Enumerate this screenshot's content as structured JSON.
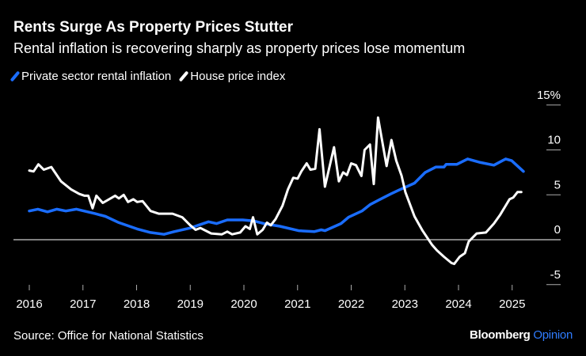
{
  "chart_data": {
    "type": "line",
    "title": "Rents Surge As Property Prices Stutter",
    "subtitle": "Rental inflation is recovering sharply as property prices lose momentum",
    "xlabel": "",
    "ylabel": "",
    "xlim": [
      2016,
      2025.3
    ],
    "ylim": [
      -5,
      15
    ],
    "x_ticks": [
      "2016",
      "2017",
      "2018",
      "2019",
      "2020",
      "2021",
      "2022",
      "2023",
      "2024",
      "2025"
    ],
    "y_ticks": [
      {
        "value": 15,
        "label": "15%"
      },
      {
        "value": 10,
        "label": "10"
      },
      {
        "value": 5,
        "label": "5"
      },
      {
        "value": 0,
        "label": "0"
      },
      {
        "value": -5,
        "label": "-5"
      }
    ],
    "grid": false,
    "legend_position": "top-left",
    "series": [
      {
        "name": "Private sector rental inflation",
        "color": "#1a6dff",
        "points": [
          [
            2016.0,
            3.2
          ],
          [
            2016.16,
            3.4
          ],
          [
            2016.34,
            3.1
          ],
          [
            2016.51,
            3.4
          ],
          [
            2016.68,
            3.2
          ],
          [
            2016.88,
            3.4
          ],
          [
            2017.23,
            2.9
          ],
          [
            2017.42,
            2.6
          ],
          [
            2017.67,
            1.9
          ],
          [
            2018.01,
            1.2
          ],
          [
            2018.26,
            0.8
          ],
          [
            2018.51,
            0.6
          ],
          [
            2018.7,
            0.9
          ],
          [
            2019.0,
            1.3
          ],
          [
            2019.34,
            2.0
          ],
          [
            2019.49,
            1.8
          ],
          [
            2019.69,
            2.2
          ],
          [
            2019.98,
            2.2
          ],
          [
            2020.18,
            2.1
          ],
          [
            2020.37,
            1.8
          ],
          [
            2020.67,
            1.5
          ],
          [
            2021.02,
            1.0
          ],
          [
            2021.31,
            0.9
          ],
          [
            2021.44,
            1.1
          ],
          [
            2021.51,
            1.0
          ],
          [
            2021.81,
            1.8
          ],
          [
            2021.95,
            2.5
          ],
          [
            2022.2,
            3.2
          ],
          [
            2022.35,
            3.9
          ],
          [
            2022.54,
            4.5
          ],
          [
            2022.74,
            5.1
          ],
          [
            2022.88,
            5.5
          ],
          [
            2023.18,
            6.3
          ],
          [
            2023.38,
            7.5
          ],
          [
            2023.58,
            8.1
          ],
          [
            2023.73,
            8.1
          ],
          [
            2023.77,
            8.4
          ],
          [
            2023.97,
            8.4
          ],
          [
            2024.17,
            9.0
          ],
          [
            2024.41,
            8.6
          ],
          [
            2024.66,
            8.3
          ],
          [
            2024.88,
            9.0
          ],
          [
            2024.99,
            8.8
          ],
          [
            2025.21,
            7.6
          ]
        ]
      },
      {
        "name": "House price index",
        "color": "#ffffff",
        "points": [
          [
            2016.0,
            7.7
          ],
          [
            2016.08,
            7.6
          ],
          [
            2016.17,
            8.4
          ],
          [
            2016.27,
            7.8
          ],
          [
            2016.41,
            8.1
          ],
          [
            2016.59,
            6.5
          ],
          [
            2016.78,
            5.6
          ],
          [
            2016.93,
            5.1
          ],
          [
            2017.03,
            4.9
          ],
          [
            2017.1,
            4.9
          ],
          [
            2017.18,
            3.5
          ],
          [
            2017.25,
            4.9
          ],
          [
            2017.37,
            4.1
          ],
          [
            2017.6,
            4.9
          ],
          [
            2017.67,
            4.6
          ],
          [
            2017.76,
            5.0
          ],
          [
            2017.84,
            4.2
          ],
          [
            2017.94,
            4.5
          ],
          [
            2018.01,
            4.2
          ],
          [
            2018.11,
            4.3
          ],
          [
            2018.26,
            3.2
          ],
          [
            2018.41,
            2.9
          ],
          [
            2018.56,
            2.9
          ],
          [
            2018.67,
            2.9
          ],
          [
            2018.85,
            2.5
          ],
          [
            2019.0,
            1.6
          ],
          [
            2019.1,
            1.1
          ],
          [
            2019.19,
            1.3
          ],
          [
            2019.39,
            0.7
          ],
          [
            2019.59,
            0.6
          ],
          [
            2019.69,
            0.9
          ],
          [
            2019.78,
            0.6
          ],
          [
            2019.93,
            0.8
          ],
          [
            2020.03,
            1.5
          ],
          [
            2020.11,
            1.2
          ],
          [
            2020.17,
            2.5
          ],
          [
            2020.25,
            0.6
          ],
          [
            2020.35,
            1.1
          ],
          [
            2020.43,
            1.9
          ],
          [
            2020.5,
            1.6
          ],
          [
            2020.59,
            2.3
          ],
          [
            2020.72,
            3.8
          ],
          [
            2020.82,
            5.6
          ],
          [
            2020.92,
            6.9
          ],
          [
            2021.0,
            6.8
          ],
          [
            2021.07,
            7.6
          ],
          [
            2021.17,
            8.5
          ],
          [
            2021.24,
            7.8
          ],
          [
            2021.33,
            7.9
          ],
          [
            2021.41,
            12.3
          ],
          [
            2021.51,
            5.9
          ],
          [
            2021.68,
            10.3
          ],
          [
            2021.77,
            6.5
          ],
          [
            2021.85,
            7.5
          ],
          [
            2021.92,
            7.2
          ],
          [
            2022.0,
            8.5
          ],
          [
            2022.09,
            8.3
          ],
          [
            2022.19,
            7.1
          ],
          [
            2022.25,
            10.0
          ],
          [
            2022.35,
            10.6
          ],
          [
            2022.42,
            6.2
          ],
          [
            2022.5,
            13.6
          ],
          [
            2022.66,
            8.2
          ],
          [
            2022.75,
            11.1
          ],
          [
            2022.84,
            8.8
          ],
          [
            2022.94,
            7.1
          ],
          [
            2023.01,
            5.3
          ],
          [
            2023.18,
            2.6
          ],
          [
            2023.33,
            1.0
          ],
          [
            2023.51,
            -0.6
          ],
          [
            2023.6,
            -1.2
          ],
          [
            2023.73,
            -1.9
          ],
          [
            2023.87,
            -2.6
          ],
          [
            2023.92,
            -2.7
          ],
          [
            2024.02,
            -1.9
          ],
          [
            2024.12,
            -1.5
          ],
          [
            2024.19,
            -0.2
          ],
          [
            2024.34,
            0.7
          ],
          [
            2024.51,
            0.8
          ],
          [
            2024.66,
            1.8
          ],
          [
            2024.78,
            2.8
          ],
          [
            2024.95,
            4.5
          ],
          [
            2025.02,
            4.7
          ],
          [
            2025.1,
            5.3
          ],
          [
            2025.17,
            5.3
          ]
        ]
      }
    ]
  },
  "footer": {
    "source": "Source: Office for National Statistics",
    "logo_brand": "Bloomberg",
    "logo_section": "Opinion"
  }
}
